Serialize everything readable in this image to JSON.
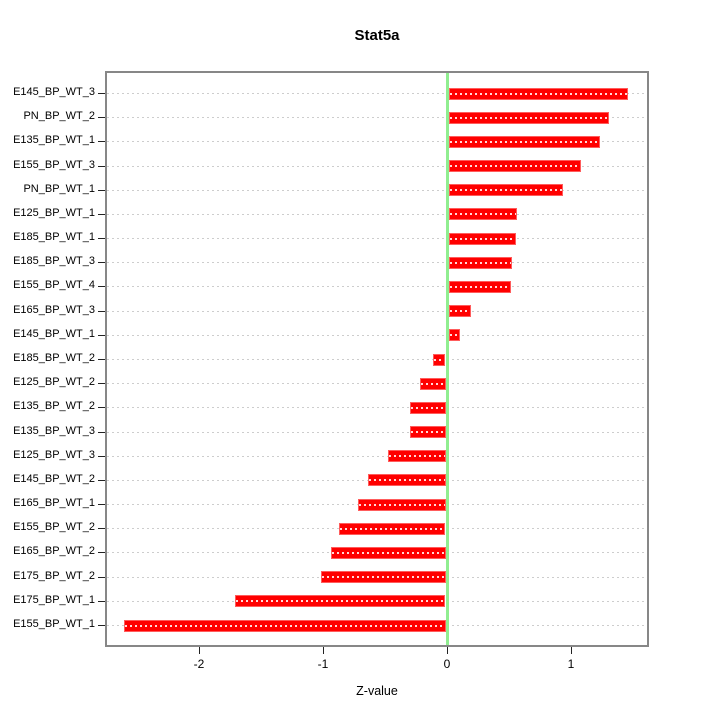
{
  "chart_data": {
    "type": "bar",
    "orientation": "horizontal",
    "title": "Stat5a",
    "xlabel": "Z-value",
    "ylabel": "",
    "categories": [
      "E145_BP_WT_3",
      "PN_BP_WT_2",
      "E135_BP_WT_1",
      "E155_BP_WT_3",
      "PN_BP_WT_1",
      "E125_BP_WT_1",
      "E185_BP_WT_1",
      "E185_BP_WT_3",
      "E155_BP_WT_4",
      "E165_BP_WT_3",
      "E145_BP_WT_1",
      "E185_BP_WT_2",
      "E125_BP_WT_2",
      "E135_BP_WT_2",
      "E135_BP_WT_3",
      "E125_BP_WT_3",
      "E145_BP_WT_2",
      "E165_BP_WT_1",
      "E155_BP_WT_2",
      "E165_BP_WT_2",
      "E175_BP_WT_2",
      "E175_BP_WT_1",
      "E155_BP_WT_1"
    ],
    "values": [
      1.46,
      1.3,
      1.23,
      1.08,
      0.93,
      0.56,
      0.55,
      0.52,
      0.51,
      0.19,
      0.1,
      -0.11,
      -0.22,
      -0.3,
      -0.3,
      -0.48,
      -0.64,
      -0.72,
      -0.87,
      -0.94,
      -1.02,
      -1.71,
      -2.61
    ],
    "xlim": [
      -2.76,
      1.63
    ],
    "xticks": [
      -2,
      -1,
      0,
      1
    ],
    "grid": true,
    "legend": null,
    "colors": {
      "bar_fill": "#ff0000",
      "bar_border": "#ff5c5c",
      "zero_line": "#90ee90",
      "gridline": "#cdcdcd",
      "box_border": "#878787",
      "text": "#000000"
    }
  }
}
